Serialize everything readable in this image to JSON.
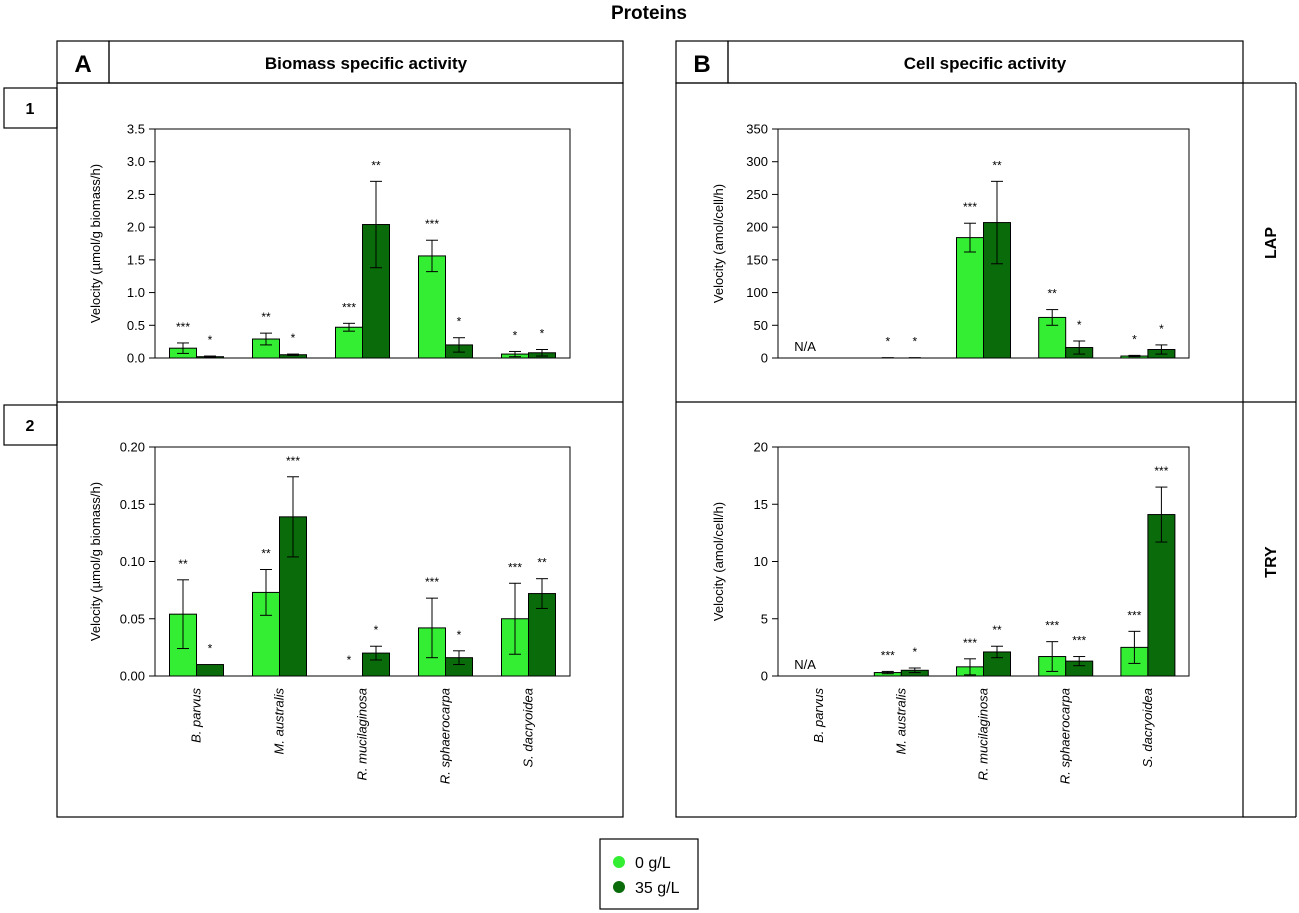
{
  "figure_title": "Proteins",
  "columns": [
    {
      "letter": "A",
      "title": "Biomass specific activity"
    },
    {
      "letter": "B",
      "title": "Cell specific activity"
    }
  ],
  "rows": [
    {
      "number": "1",
      "label": "LAP"
    },
    {
      "number": "2",
      "label": "TRY"
    }
  ],
  "legend": [
    {
      "label": "0 g/L",
      "color": "#33ee33"
    },
    {
      "label": "35 g/L",
      "color": "#0a6b0a"
    }
  ],
  "colors": {
    "light": "#33ee33",
    "dark": "#0a6b0a"
  },
  "chart_data": [
    {
      "id": "A1",
      "type": "bar",
      "title": "",
      "ylabel": "Velocity (µmol/g biomass/h)",
      "ylim": [
        0,
        3.5
      ],
      "yticks": [
        "0.0",
        "0.5",
        "1.0",
        "1.5",
        "2.0",
        "2.5",
        "3.0",
        "3.5"
      ],
      "categories": [
        "B. parvus",
        "M. australis",
        "R. mucilaginosa",
        "R. sphaerocarpa",
        "S. dacryoidea"
      ],
      "show_categories": false,
      "na_label": "",
      "series": [
        {
          "name": "0 g/L",
          "values": [
            0.15,
            0.29,
            0.47,
            1.56,
            0.06
          ],
          "errors": [
            0.08,
            0.09,
            0.06,
            0.24,
            0.04
          ],
          "sig": [
            "***",
            "**",
            "***",
            "***",
            "*"
          ]
        },
        {
          "name": "35 g/L",
          "values": [
            0.02,
            0.05,
            2.04,
            0.2,
            0.08
          ],
          "errors": [
            0.01,
            0.01,
            0.66,
            0.11,
            0.05
          ],
          "sig": [
            "*",
            "*",
            "**",
            "*",
            "*"
          ]
        }
      ]
    },
    {
      "id": "B1",
      "type": "bar",
      "title": "",
      "ylabel": "Velocity (amol/cell/h)",
      "ylim": [
        0,
        350
      ],
      "yticks": [
        "0",
        "50",
        "100",
        "150",
        "200",
        "250",
        "300",
        "350"
      ],
      "categories": [
        "B. parvus",
        "M. australis",
        "R. mucilaginosa",
        "R. sphaerocarpa",
        "S. dacryoidea"
      ],
      "show_categories": false,
      "na_label": "N/A",
      "series": [
        {
          "name": "0 g/L",
          "values": [
            null,
            0.3,
            184,
            62,
            3
          ],
          "errors": [
            null,
            0.2,
            22,
            12,
            1
          ],
          "sig": [
            "",
            "*",
            "***",
            "**",
            "*"
          ]
        },
        {
          "name": "35 g/L",
          "values": [
            null,
            0.3,
            207,
            16,
            13
          ],
          "errors": [
            null,
            0.2,
            63,
            10,
            7
          ],
          "sig": [
            "",
            "*",
            "**",
            "*",
            "*"
          ]
        }
      ]
    },
    {
      "id": "A2",
      "type": "bar",
      "title": "",
      "ylabel": "Velocity (µmol/g biomass/h)",
      "ylim": [
        0,
        0.2
      ],
      "yticks": [
        "0.00",
        "0.05",
        "0.10",
        "0.15",
        "0.20"
      ],
      "categories": [
        "B. parvus",
        "M. australis",
        "R. mucilaginosa",
        "R. sphaerocarpa",
        "S. dacryoidea"
      ],
      "show_categories": true,
      "na_label": "",
      "series": [
        {
          "name": "0 g/L",
          "values": [
            0.054,
            0.073,
            0.0,
            0.042,
            0.05
          ],
          "errors": [
            0.03,
            0.02,
            0.0,
            0.026,
            0.031
          ],
          "sig": [
            "**",
            "**",
            "*",
            "***",
            "***"
          ]
        },
        {
          "name": "35 g/L",
          "values": [
            0.01,
            0.139,
            0.02,
            0.016,
            0.072
          ],
          "errors": [
            0.0,
            0.035,
            0.006,
            0.006,
            0.013
          ],
          "sig": [
            "*",
            "***",
            "*",
            "*",
            "**"
          ]
        }
      ]
    },
    {
      "id": "B2",
      "type": "bar",
      "title": "",
      "ylabel": "Velocity (amol/cell/h)",
      "ylim": [
        0,
        20
      ],
      "yticks": [
        "0",
        "5",
        "10",
        "15",
        "20"
      ],
      "categories": [
        "B. parvus",
        "M. australis",
        "R. mucilaginosa",
        "R. sphaerocarpa",
        "S. dacryoidea"
      ],
      "show_categories": true,
      "na_label": "N/A",
      "series": [
        {
          "name": "0 g/L",
          "values": [
            null,
            0.3,
            0.8,
            1.7,
            2.5
          ],
          "errors": [
            null,
            0.1,
            0.7,
            1.3,
            1.4
          ],
          "sig": [
            "",
            "***",
            "***",
            "***",
            "***"
          ]
        },
        {
          "name": "35 g/L",
          "values": [
            null,
            0.5,
            2.1,
            1.3,
            14.1
          ],
          "errors": [
            null,
            0.2,
            0.5,
            0.4,
            2.4
          ],
          "sig": [
            "",
            "*",
            "**",
            "***",
            "***"
          ]
        }
      ]
    }
  ]
}
